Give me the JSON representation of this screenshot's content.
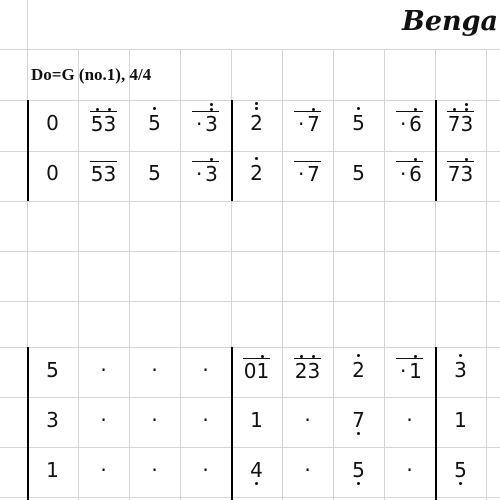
{
  "sheet": {
    "title": "Benga",
    "info": "Do=G (no.1), 4/4",
    "rows": [
      {
        "cells": [
          {
            "notes": [
              {
                "t": "0"
              }
            ]
          },
          {
            "notes": [
              {
                "t": "5",
                "a": 1
              },
              {
                "t": "3",
                "a": 1
              }
            ],
            "line": true
          },
          {
            "notes": [
              {
                "t": "5",
                "a": 1
              }
            ]
          },
          {
            "notes": [
              {
                "t": "·"
              },
              {
                "t": "3",
                "a": 2
              }
            ],
            "line": true
          },
          {
            "notes": [
              {
                "t": "2",
                "a": 2
              }
            ]
          },
          {
            "notes": [
              {
                "t": "·"
              },
              {
                "t": "7",
                "a": 1
              }
            ],
            "line": true
          },
          {
            "notes": [
              {
                "t": "5",
                "a": 1
              }
            ]
          },
          {
            "notes": [
              {
                "t": "·"
              },
              {
                "t": "6",
                "a": 1
              }
            ],
            "line": true
          },
          {
            "notes": [
              {
                "t": "7",
                "a": 1
              },
              {
                "t": "3",
                "a": 2
              }
            ],
            "line": true
          }
        ]
      },
      {
        "cells": [
          {
            "notes": [
              {
                "t": "0"
              }
            ]
          },
          {
            "notes": [
              {
                "t": "5"
              },
              {
                "t": "3"
              }
            ],
            "line": true
          },
          {
            "notes": [
              {
                "t": "5"
              }
            ]
          },
          {
            "notes": [
              {
                "t": "·"
              },
              {
                "t": "3",
                "a": 1
              }
            ],
            "line": true
          },
          {
            "notes": [
              {
                "t": "2",
                "a": 1
              }
            ]
          },
          {
            "notes": [
              {
                "t": "·"
              },
              {
                "t": "7"
              }
            ],
            "line": true
          },
          {
            "notes": [
              {
                "t": "5"
              }
            ]
          },
          {
            "notes": [
              {
                "t": "·"
              },
              {
                "t": "6",
                "a": 1
              }
            ],
            "line": true
          },
          {
            "notes": [
              {
                "t": "7"
              },
              {
                "t": "3",
                "a": 1
              }
            ],
            "line": true
          }
        ]
      },
      {
        "cells": [
          {
            "notes": [
              {
                "t": "5"
              }
            ]
          },
          {
            "notes": [
              {
                "t": "·"
              }
            ]
          },
          {
            "notes": [
              {
                "t": "·"
              }
            ]
          },
          {
            "notes": [
              {
                "t": "·"
              }
            ]
          },
          {
            "notes": [
              {
                "t": "0"
              },
              {
                "t": "1",
                "a": 1
              }
            ],
            "line": true
          },
          {
            "notes": [
              {
                "t": "2",
                "a": 1
              },
              {
                "t": "3",
                "a": 1
              }
            ],
            "line": true
          },
          {
            "notes": [
              {
                "t": "2",
                "a": 1
              }
            ]
          },
          {
            "notes": [
              {
                "t": "·"
              },
              {
                "t": "1",
                "a": 1
              }
            ],
            "line": true
          },
          {
            "notes": [
              {
                "t": "3",
                "a": 1
              }
            ]
          }
        ]
      },
      {
        "cells": [
          {
            "notes": [
              {
                "t": "3"
              }
            ]
          },
          {
            "notes": [
              {
                "t": "·"
              }
            ]
          },
          {
            "notes": [
              {
                "t": "·"
              }
            ]
          },
          {
            "notes": [
              {
                "t": "·"
              }
            ]
          },
          {
            "notes": [
              {
                "t": "1"
              }
            ]
          },
          {
            "notes": [
              {
                "t": "·"
              }
            ]
          },
          {
            "notes": [
              {
                "t": "7",
                "b": 1
              }
            ]
          },
          {
            "notes": [
              {
                "t": "·"
              }
            ]
          },
          {
            "notes": [
              {
                "t": "1"
              }
            ]
          }
        ]
      },
      {
        "cells": [
          {
            "notes": [
              {
                "t": "1"
              }
            ]
          },
          {
            "notes": [
              {
                "t": "·"
              }
            ]
          },
          {
            "notes": [
              {
                "t": "·"
              }
            ]
          },
          {
            "notes": [
              {
                "t": "·"
              }
            ]
          },
          {
            "notes": [
              {
                "t": "4",
                "b": 1
              }
            ]
          },
          {
            "notes": [
              {
                "t": "·"
              }
            ]
          },
          {
            "notes": [
              {
                "t": "5",
                "b": 1
              }
            ]
          },
          {
            "notes": [
              {
                "t": "·"
              }
            ]
          },
          {
            "notes": [
              {
                "t": "5",
                "b": 1
              }
            ]
          }
        ]
      }
    ]
  }
}
